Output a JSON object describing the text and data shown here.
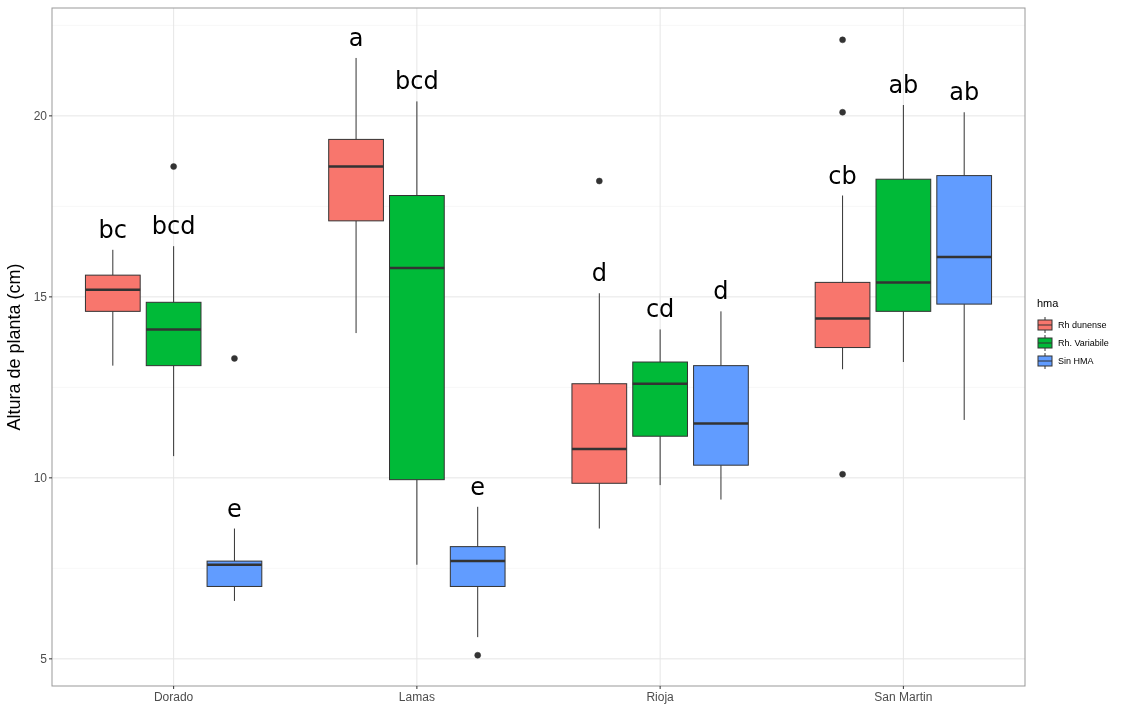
{
  "chart_data": {
    "type": "box",
    "ylabel": "Altura de planta (cm)",
    "legend_title": "hma",
    "legend": "right",
    "grid": true,
    "categories": [
      "Dorado",
      "Lamas",
      "Rioja",
      "San Martin"
    ],
    "ylim": [
      4.25,
      22.98
    ],
    "yticks": [
      5,
      10,
      15,
      20
    ],
    "series": [
      {
        "name": "Rh dunense",
        "color": "#f8766d",
        "value_labels": [
          "bc",
          "a",
          "d",
          "cb"
        ],
        "boxes": [
          {
            "low": 13.1,
            "q1": 14.6,
            "median": 15.2,
            "q3": 15.6,
            "high": 16.3
          },
          {
            "low": 14.0,
            "q1": 17.1,
            "median": 18.6,
            "q3": 19.35,
            "high": 21.6
          },
          {
            "low": 8.6,
            "q1": 9.85,
            "median": 10.8,
            "q3": 12.6,
            "high": 15.1,
            "outliers": [
              18.2
            ]
          },
          {
            "low": 13.0,
            "q1": 13.6,
            "median": 14.4,
            "q3": 15.4,
            "high": 17.8,
            "outliers": [
              22.1,
              20.1,
              10.1
            ]
          }
        ]
      },
      {
        "name": "Rh. Variabile",
        "color": "#00ba38",
        "value_labels": [
          "bcd",
          "bcd",
          "cd",
          "ab"
        ],
        "boxes": [
          {
            "low": 10.6,
            "q1": 13.1,
            "median": 14.1,
            "q3": 14.85,
            "high": 16.4,
            "outliers": [
              18.6
            ]
          },
          {
            "low": 7.6,
            "q1": 9.95,
            "median": 15.8,
            "q3": 17.8,
            "high": 20.4
          },
          {
            "low": 9.8,
            "q1": 11.15,
            "median": 12.6,
            "q3": 13.2,
            "high": 14.1
          },
          {
            "low": 13.2,
            "q1": 14.6,
            "median": 15.4,
            "q3": 18.25,
            "high": 20.3
          }
        ]
      },
      {
        "name": "Sin HMA",
        "color": "#619cff",
        "value_labels": [
          "e",
          "e",
          "d",
          "ab"
        ],
        "boxes": [
          {
            "low": 6.6,
            "q1": 7.0,
            "median": 7.6,
            "q3": 7.7,
            "high": 8.6,
            "outliers": [
              13.3
            ]
          },
          {
            "low": 5.6,
            "q1": 7.0,
            "median": 7.7,
            "q3": 8.1,
            "high": 9.2,
            "outliers": [
              5.1
            ]
          },
          {
            "low": 9.4,
            "q1": 10.35,
            "median": 11.5,
            "q3": 13.1,
            "high": 14.6
          },
          {
            "low": 11.6,
            "q1": 14.8,
            "median": 16.1,
            "q3": 18.35,
            "high": 20.1
          }
        ]
      }
    ]
  }
}
